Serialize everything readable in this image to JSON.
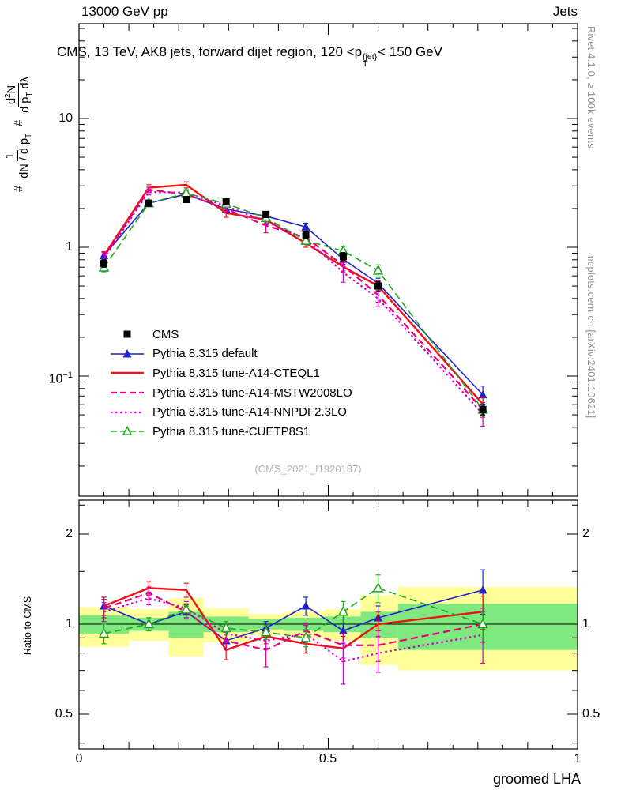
{
  "header": {
    "left": "13000 GeV pp",
    "right": "Jets"
  },
  "title": {
    "prefix": "CMS, 13 TeV, AK8 jets, forward dijet region, 120 <p",
    "sup": "{jet}",
    "sub": "T",
    "suffix": "< 150 GeV"
  },
  "ylabel": {
    "hash1": "#",
    "f1num": "1",
    "f1den_pre": "dN / d p",
    "f1den_sub": "T",
    "hash2": "#",
    "f2num_pre": "d",
    "f2num_sup": "2",
    "f2num_post": "N",
    "f2den_pre": "d p",
    "f2den_sub": "T",
    "f2den_post": " dλ"
  },
  "ratio_label": "Ratio to CMS",
  "xlabel": "groomed LHA",
  "watermark": "(CMS_2021_I1920187)",
  "right_texts": {
    "top": "Rivet 4.1.0, ≥ 100k events",
    "bottom": "mcplots.cern.ch [arXiv:2401.10621]"
  },
  "axes": {
    "main_yticks": [
      {
        "base": "10",
        "exp": ""
      },
      {
        "base": "1",
        "exp": ""
      },
      {
        "base": "10",
        "exp": "−1"
      }
    ],
    "ratio_yticks": [
      "2",
      "1",
      "0.5"
    ],
    "xticks": [
      "0",
      "0.5",
      "1"
    ]
  },
  "legend": [
    {
      "label": "CMS",
      "color": "#000000"
    },
    {
      "label": "Pythia 8.315 default",
      "color": "#2222cc"
    },
    {
      "label": "Pythia 8.315 tune-A14-CTEQL1",
      "color": "#ee1111"
    },
    {
      "label": "Pythia 8.315 tune-A14-MSTW2008LO",
      "color": "#e5007d"
    },
    {
      "label": "Pythia 8.315 tune-A14-NNPDF2.3LO",
      "color": "#cc00cc"
    },
    {
      "label": "Pythia 8.315 tune-CUETP8S1",
      "color": "#1fa81f"
    }
  ],
  "chart_data": {
    "type": "line",
    "title": "CMS, 13 TeV, AK8 jets, forward dijet region, 120 <pT{jet}< 150 GeV",
    "xlabel": "groomed LHA",
    "ylabel": "1/(dN/dpT) d2N/(dpT dlambda)",
    "ratio_ylabel": "Ratio to CMS",
    "xlim": [
      0,
      1
    ],
    "main_ylog": true,
    "main_ylim": [
      0.0117,
      54
    ],
    "ratio_ylog": true,
    "ratio_ylim": [
      0.39,
      2.6
    ],
    "x": [
      0.05,
      0.14,
      0.215,
      0.295,
      0.375,
      0.455,
      0.53,
      0.6,
      0.81
    ],
    "bin_edges": [
      0.0,
      0.1,
      0.18,
      0.25,
      0.34,
      0.41,
      0.49,
      0.565,
      0.64,
      1.0
    ],
    "cms": {
      "name": "CMS",
      "values": [
        0.75,
        2.2,
        2.35,
        2.25,
        1.8,
        1.25,
        0.85,
        0.5,
        0.055
      ],
      "errors": [
        0.05,
        0.12,
        0.12,
        0.12,
        0.1,
        0.08,
        0.06,
        0.04,
        0.005
      ]
    },
    "series": [
      {
        "name": "Pythia 8.315 default",
        "color": "#2222cc",
        "style": "solid",
        "marker": "triangle-filled",
        "width": 1.6,
        "ratio": [
          1.15,
          1.0,
          1.1,
          0.88,
          0.97,
          1.15,
          0.95,
          1.05,
          1.3
        ],
        "ratio_err": [
          0.08,
          0.05,
          0.05,
          0.06,
          0.05,
          0.08,
          0.09,
          0.1,
          0.22
        ]
      },
      {
        "name": "Pythia 8.315 tune-A14-CTEQL1",
        "color": "#ee1111",
        "style": "solid",
        "marker": null,
        "width": 2.4,
        "ratio": [
          1.15,
          1.32,
          1.3,
          0.82,
          0.91,
          0.86,
          0.83,
          1.0,
          1.1
        ],
        "ratio_err": [
          0.08,
          0.07,
          0.07,
          0.06,
          0.05,
          0.06,
          0.08,
          0.1,
          0.14
        ]
      },
      {
        "name": "Pythia 8.315 tune-A14-MSTW2008LO",
        "color": "#e5007d",
        "style": "dashed",
        "marker": null,
        "width": 2.2,
        "ratio": [
          1.13,
          1.27,
          1.1,
          0.88,
          0.82,
          0.95,
          0.85,
          0.85,
          1.0
        ],
        "ratio_err": [
          0.08,
          0.06,
          0.06,
          0.06,
          0.1,
          0.06,
          0.08,
          0.1,
          0.13
        ]
      },
      {
        "name": "Pythia 8.315 tune-A14-NNPDF2.3LO",
        "color": "#cc00cc",
        "style": "dotted",
        "marker": null,
        "width": 2.2,
        "ratio": [
          1.1,
          1.22,
          1.13,
          0.93,
          0.88,
          0.93,
          0.75,
          0.8,
          0.92
        ],
        "ratio_err": [
          0.08,
          0.06,
          0.06,
          0.06,
          0.05,
          0.06,
          0.12,
          0.11,
          0.18
        ]
      },
      {
        "name": "Pythia 8.315 tune-CUETP8S1",
        "color": "#1fa81f",
        "style": "dashed",
        "marker": "triangle-open",
        "width": 1.6,
        "ratio": [
          0.93,
          1.0,
          1.12,
          0.97,
          0.94,
          0.9,
          1.1,
          1.32,
          1.0
        ],
        "ratio_err": [
          0.07,
          0.05,
          0.05,
          0.05,
          0.05,
          0.06,
          0.09,
          0.14,
          0.1
        ]
      }
    ],
    "bands": {
      "note": "ratio-panel uncertainty bands around 1, per bin [lo,hi]",
      "colors": {
        "yellow": "#ffff99",
        "green": "#7fe87f"
      },
      "yellow": [
        [
          0.84,
          1.14
        ],
        [
          0.88,
          1.12
        ],
        [
          0.78,
          1.22
        ],
        [
          0.87,
          1.13
        ],
        [
          0.92,
          1.08
        ],
        [
          0.9,
          1.1
        ],
        [
          0.88,
          1.12
        ],
        [
          0.73,
          1.25
        ],
        [
          0.7,
          1.33
        ]
      ],
      "green": [
        [
          0.93,
          1.07
        ],
        [
          0.95,
          1.05
        ],
        [
          0.9,
          1.1
        ],
        [
          0.94,
          1.06
        ],
        [
          0.96,
          1.04
        ],
        [
          0.95,
          1.05
        ],
        [
          0.94,
          1.06
        ],
        [
          0.9,
          1.1
        ],
        [
          0.82,
          1.17
        ]
      ]
    }
  }
}
